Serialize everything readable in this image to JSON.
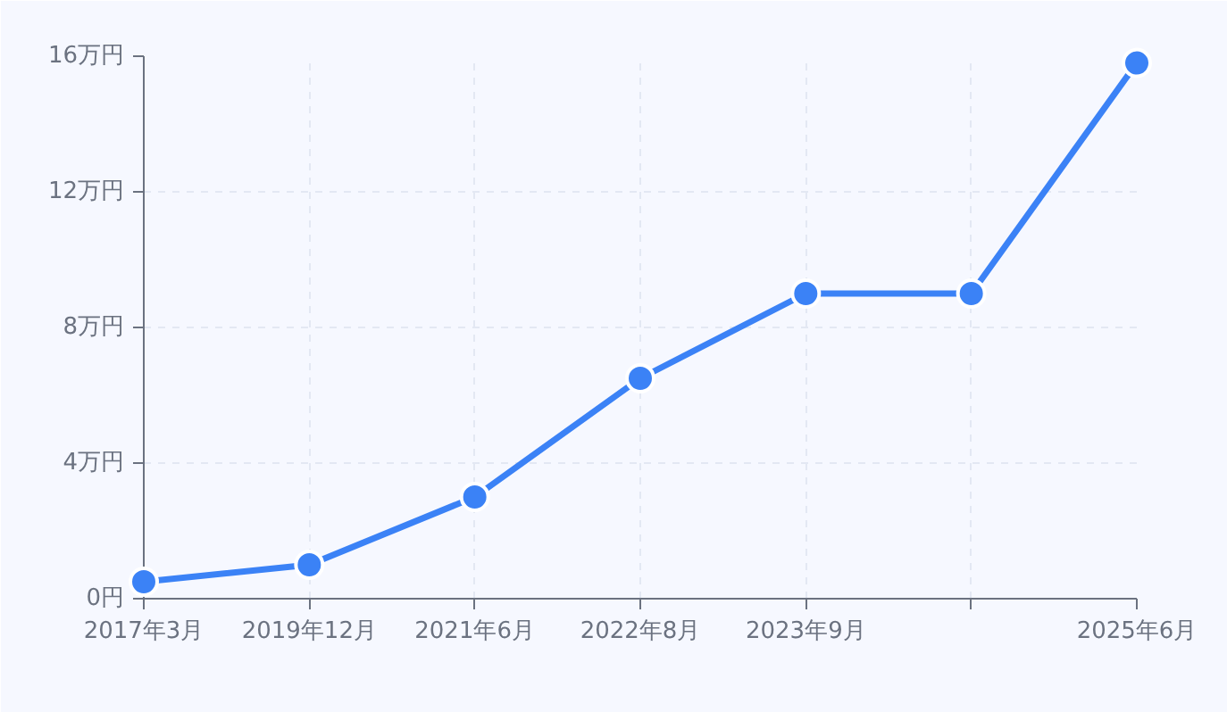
{
  "chart_data": {
    "type": "line",
    "categories": [
      "2017年3月",
      "2019年12月",
      "2021年6月",
      "2022年8月",
      "2023年9月",
      null,
      "2025年6月"
    ],
    "series": [
      {
        "color": "#3b82f6",
        "values": [
          0.5,
          1,
          3,
          6.5,
          9,
          9,
          15.8
        ]
      }
    ],
    "ylim": [
      0,
      16
    ],
    "yticks": [
      {
        "value": 0,
        "label": "0円"
      },
      {
        "value": 4,
        "label": "4万円"
      },
      {
        "value": 8,
        "label": "8万円"
      },
      {
        "value": 12,
        "label": "12万円"
      },
      {
        "value": 16,
        "label": "16万円"
      }
    ],
    "grid": true,
    "marker": "circle",
    "line_style": "solid"
  }
}
